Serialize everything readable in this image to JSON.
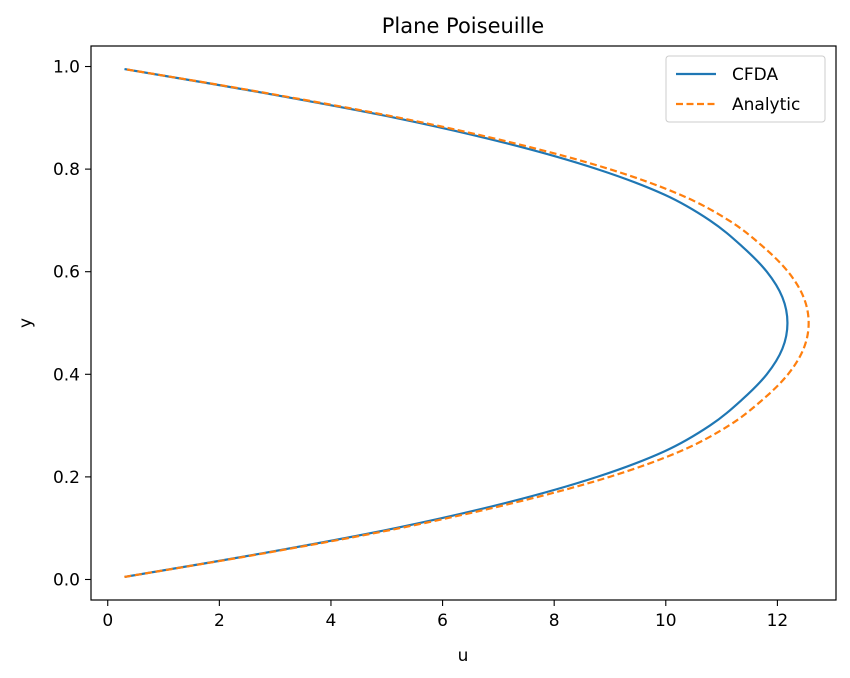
{
  "chart_data": {
    "type": "line",
    "title": "Plane Poiseuille",
    "xlabel": "u",
    "ylabel": "y",
    "xlim": [
      -0.3,
      13.05
    ],
    "ylim": [
      -0.04,
      1.04
    ],
    "xticks": [
      0,
      2,
      4,
      6,
      8,
      10,
      12
    ],
    "yticks": [
      0.0,
      0.2,
      0.4,
      0.6,
      0.8,
      1.0
    ],
    "xtick_labels": [
      "0",
      "2",
      "4",
      "6",
      "8",
      "10",
      "12"
    ],
    "ytick_labels": [
      "0.0",
      "0.2",
      "0.4",
      "0.6",
      "0.8",
      "1.0"
    ],
    "grid": false,
    "legend_position": "top-right",
    "series": [
      {
        "name": "CFDA",
        "color": "#1f77b4",
        "style": "solid",
        "y": [
          0.005,
          0.05,
          0.1,
          0.15,
          0.2,
          0.25,
          0.3,
          0.35,
          0.4,
          0.45,
          0.5,
          0.55,
          0.6,
          0.65,
          0.7,
          0.75,
          0.8,
          0.85,
          0.9,
          0.95,
          0.995
        ],
        "x": [
          0.3,
          2.72,
          5.15,
          7.16,
          8.77,
          9.98,
          10.79,
          11.36,
          11.81,
          12.09,
          12.18,
          12.09,
          11.81,
          11.36,
          10.79,
          9.98,
          8.77,
          7.16,
          5.15,
          2.72,
          0.3
        ]
      },
      {
        "name": "Analytic",
        "color": "#ff7f0e",
        "style": "dashed",
        "y": [
          0.005,
          0.05,
          0.1,
          0.15,
          0.2,
          0.25,
          0.3,
          0.35,
          0.4,
          0.45,
          0.5,
          0.55,
          0.6,
          0.65,
          0.7,
          0.75,
          0.8,
          0.85,
          0.9,
          0.95,
          0.995
        ],
        "x": [
          0.3,
          2.75,
          5.23,
          7.3,
          8.99,
          10.26,
          11.13,
          11.73,
          12.19,
          12.47,
          12.56,
          12.47,
          12.19,
          11.73,
          11.13,
          10.26,
          8.99,
          7.3,
          5.23,
          2.75,
          0.3
        ]
      }
    ]
  }
}
